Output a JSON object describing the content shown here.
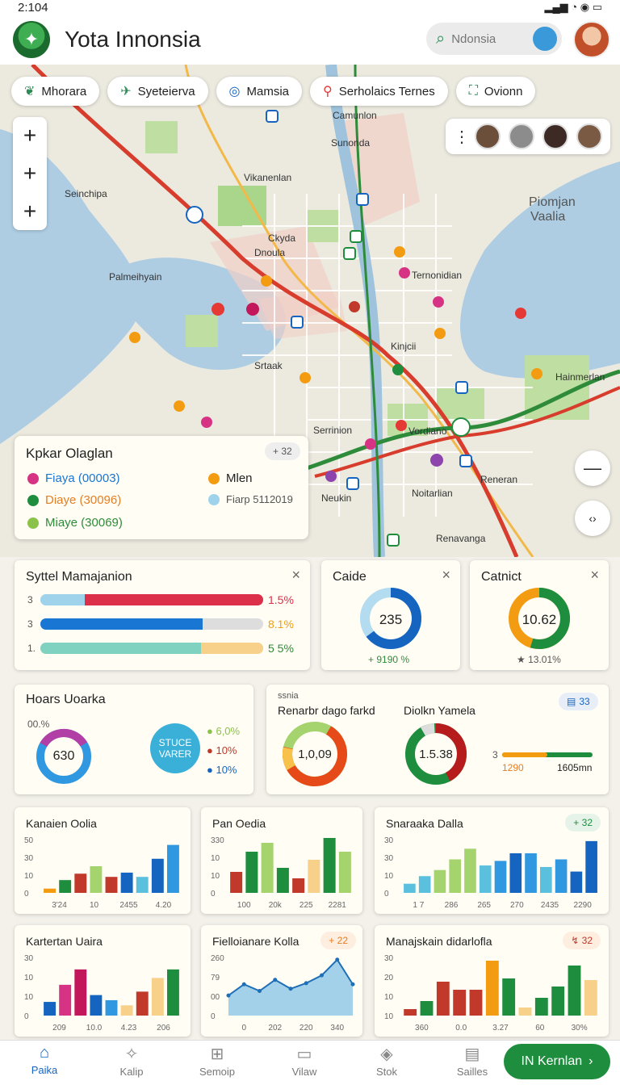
{
  "status": {
    "time": "2:104",
    "icons": "▂▄▆ ◔ ◉ ▭"
  },
  "header": {
    "title": "Yota Innonsia",
    "search_placeholder": "Ndonsia"
  },
  "map": {
    "chips": [
      {
        "label": "Mhorara",
        "icon": "leaf-icon"
      },
      {
        "label": "Syeteierva",
        "icon": "plane-icon"
      },
      {
        "label": "Mamsia",
        "icon": "compass-icon"
      },
      {
        "label": "Serholaics Ternes",
        "icon": "pin-icon"
      },
      {
        "label": "Ovionn",
        "icon": "basket-icon"
      }
    ],
    "labels": [
      {
        "text": "Camunlon",
        "cls": ""
      },
      {
        "text": "Sunonda",
        "cls": ""
      },
      {
        "text": "Vikanenlan",
        "cls": ""
      },
      {
        "text": "Seinchipa",
        "cls": ""
      },
      {
        "text": "Piomjan",
        "cls": "big"
      },
      {
        "text": "Vaalia",
        "cls": "big"
      },
      {
        "text": "Ckyda",
        "cls": ""
      },
      {
        "text": "Dnoula",
        "cls": ""
      },
      {
        "text": "Palmeihyain",
        "cls": ""
      },
      {
        "text": "Ternonidian",
        "cls": ""
      },
      {
        "text": "Srtaak",
        "cls": ""
      },
      {
        "text": "Kinjcii",
        "cls": ""
      },
      {
        "text": "Hainmerlan",
        "cls": ""
      },
      {
        "text": "Serrinion",
        "cls": ""
      },
      {
        "text": "Vordiano",
        "cls": ""
      },
      {
        "text": "Reneran",
        "cls": ""
      },
      {
        "text": "Neukin",
        "cls": ""
      },
      {
        "text": "Noitarlian",
        "cls": ""
      },
      {
        "text": "Renavanga",
        "cls": ""
      }
    ],
    "zoom_in": "+",
    "zoom_out": "—",
    "compass": "‹›"
  },
  "legend": {
    "title": "Kpkar Olaglan",
    "badge": "+ 32",
    "items": [
      {
        "label": "Fiaya (00003)",
        "color": "#d63384"
      },
      {
        "label": "Diaye (30096)",
        "color": "#1e8e3e"
      },
      {
        "label": "Miaye (30069)",
        "color": "#8bc34a"
      },
      {
        "label": "Mlen",
        "color": "#f39c12"
      },
      {
        "label": "Fiarp 5112019",
        "color": "#9fd3ec"
      }
    ]
  },
  "system_card": {
    "title": "Syttel Mamajanion",
    "rows": [
      {
        "num": "3",
        "value": "1.5%"
      },
      {
        "num": "3",
        "value": "8.1%"
      },
      {
        "num": "1.",
        "value": "5 5%"
      }
    ]
  },
  "caide_card": {
    "title": "Caide",
    "value": "235",
    "foot": "+ 9190 %"
  },
  "catnict_card": {
    "title": "Catnict",
    "value": "10.62",
    "foot": "★ 13.01%"
  },
  "hoars_card": {
    "title": "Hoars Uoarka",
    "pct": "00.%",
    "value": "630",
    "bubble_top": "STUCE",
    "bubble_bottom": "VARER",
    "stats": [
      "6,0%",
      "10%",
      "10%"
    ]
  },
  "renar_card": {
    "tiny": "ssnia",
    "title_left": "Renarbr dago farkd",
    "title_right": "Diolkn Yamela",
    "donut_left": "1,0,09",
    "donut_right": "1.5.38",
    "badge": "33",
    "bar_left": "1290",
    "bar_right": "1605mn",
    "bar_num": "3"
  },
  "chart_data": [
    {
      "type": "bar",
      "title": "Kanaien Oolia",
      "yticks": [
        "50",
        "30",
        "10",
        "0"
      ],
      "xticks": [
        "3'24",
        "10",
        "2455",
        "4.20"
      ],
      "ylim": [
        0,
        50
      ],
      "values": [
        4,
        12,
        18,
        25,
        15,
        19,
        15,
        32,
        45
      ],
      "colors": [
        "#f39c12",
        "#1e8e3e",
        "#c0392b",
        "#a5d36e",
        "#c0392b",
        "#1565c0",
        "#5bc0de",
        "#1565c0",
        "#2f98e0"
      ]
    },
    {
      "type": "bar",
      "title": "Pan Oedia",
      "yticks": [
        "330",
        "10",
        "10",
        "0"
      ],
      "xticks": [
        "100",
        "20k",
        "225",
        "2281"
      ],
      "ylim": [
        0,
        330
      ],
      "values": [
        130,
        255,
        310,
        155,
        90,
        205,
        340,
        255
      ],
      "colors": [
        "#c0392b",
        "#1e8e3e",
        "#a5d36e",
        "#1e8e3e",
        "#c0392b",
        "#f7d08a",
        "#1e8e3e",
        "#a5d36e"
      ]
    },
    {
      "type": "bar",
      "title": "Snaraaka Dalla",
      "badge": "+ 32",
      "yticks": [
        "30",
        "30",
        "10",
        "0"
      ],
      "xticks": [
        "1 7",
        "286",
        "265",
        "270",
        "2435",
        "2290"
      ],
      "ylim": [
        0,
        35
      ],
      "values": [
        6,
        11,
        15,
        22,
        29,
        18,
        21,
        26,
        26,
        17,
        22,
        14,
        34
      ],
      "colors": [
        "#5bc0de",
        "#5bc0de",
        "#a5d36e",
        "#a5d36e",
        "#a5d36e",
        "#5bc0de",
        "#2f98e0",
        "#1565c0",
        "#2f98e0",
        "#5bc0de",
        "#2f98e0",
        "#1565c0",
        "#1565c0"
      ]
    },
    {
      "type": "bar",
      "title": "Kartertan Uaira",
      "yticks": [
        "30",
        "10",
        "10",
        "0"
      ],
      "xticks": [
        "209",
        "10.0",
        "4.23",
        "206"
      ],
      "ylim": [
        0,
        34
      ],
      "values": [
        8,
        18,
        27,
        12,
        9,
        6,
        14,
        22,
        27
      ],
      "colors": [
        "#1565c0",
        "#d63384",
        "#c2185b",
        "#1565c0",
        "#2f98e0",
        "#f7d08a",
        "#c0392b",
        "#f7d08a",
        "#1e8e3e"
      ]
    },
    {
      "type": "area",
      "title": "Fielloianare Kolla",
      "badge": "+ 22",
      "yticks": [
        "260",
        "79",
        "00",
        "0"
      ],
      "xticks": [
        "0",
        "202",
        "220",
        "340"
      ],
      "ylim": [
        0,
        260
      ],
      "values": [
        90,
        140,
        110,
        160,
        120,
        145,
        180,
        250,
        140
      ]
    },
    {
      "type": "bar",
      "title": "Manajskain didarlofla",
      "badge": "↯ 32",
      "yticks": [
        "30",
        "20",
        "10",
        "10"
      ],
      "xticks": [
        "360",
        "0.0",
        "3.27",
        "60",
        "30%"
      ],
      "ylim": [
        0,
        36
      ],
      "values": [
        4,
        9,
        21,
        16,
        16,
        34,
        23,
        5,
        11,
        18,
        31,
        22
      ],
      "colors": [
        "#c0392b",
        "#1e8e3e",
        "#c0392b",
        "#c0392b",
        "#c0392b",
        "#f39c12",
        "#1e8e3e",
        "#f7d08a",
        "#1e8e3e",
        "#1e8e3e",
        "#1e8e3e",
        "#f7d08a"
      ]
    }
  ],
  "nav": [
    {
      "label": "Paika",
      "icon": "home-icon",
      "active": true
    },
    {
      "label": "Kalip",
      "icon": "star-icon"
    },
    {
      "label": "Semoip",
      "icon": "chart-icon"
    },
    {
      "label": "Vilaw",
      "icon": "doc-icon"
    },
    {
      "label": "Stok",
      "icon": "tag-icon"
    },
    {
      "label": "Sailles",
      "icon": "store-icon"
    }
  ],
  "cta": {
    "label": "IN Kernlan",
    "arrow": "›"
  }
}
